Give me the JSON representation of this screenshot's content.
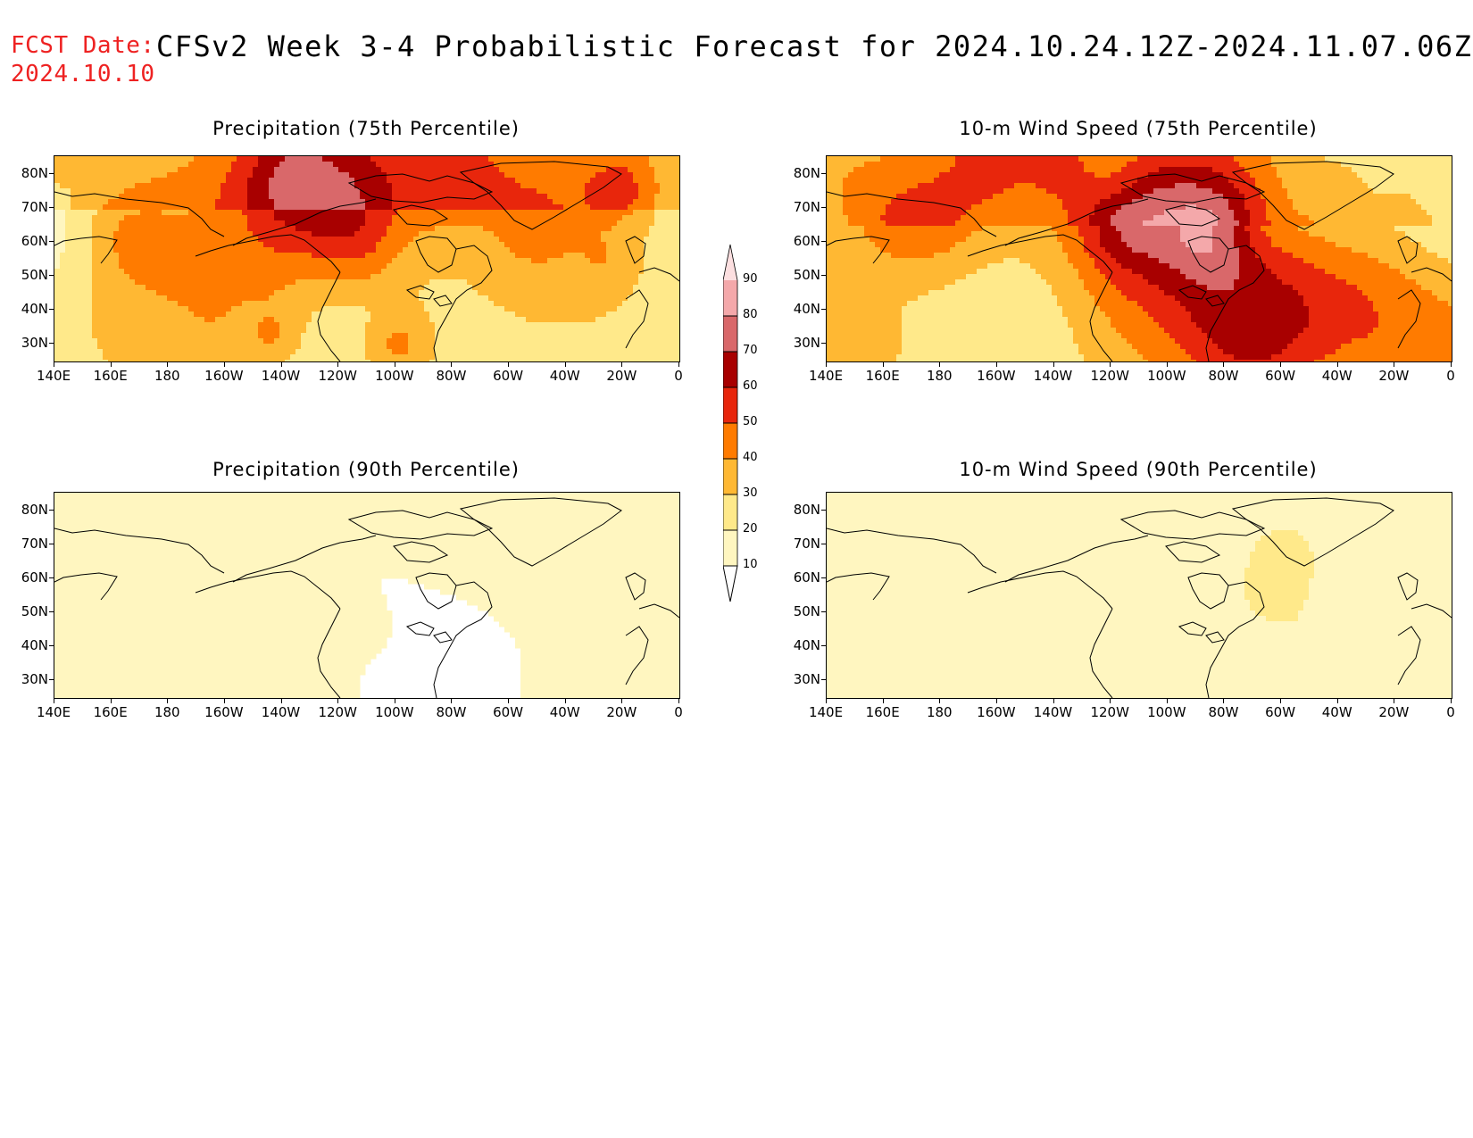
{
  "header": {
    "fcst_label": "FCST Date:",
    "fcst_date": "2024.10.10",
    "title": "CFSv2 Week 3-4 Probabilistic Forecast for 2024.10.24.12Z-2024.11.07.06Z"
  },
  "panels": [
    {
      "title": "Precipitation (75th Percentile)"
    },
    {
      "title": "10-m Wind Speed (75th Percentile)"
    },
    {
      "title": "Precipitation (90th Percentile)"
    },
    {
      "title": "10-m Wind Speed (90th Percentile)"
    }
  ],
  "axes": {
    "lat_labels": [
      "80N",
      "70N",
      "60N",
      "50N",
      "40N",
      "30N"
    ],
    "lon_labels": [
      "140E",
      "160E",
      "180",
      "160W",
      "140W",
      "120W",
      "100W",
      "80W",
      "60W",
      "40W",
      "20W",
      "0"
    ]
  },
  "colorbar": {
    "labels": [
      "10",
      "20",
      "30",
      "40",
      "50",
      "60",
      "70",
      "80",
      "90"
    ],
    "colors": [
      "#fff6c0",
      "#ffe98a",
      "#ffb833",
      "#ff7b00",
      "#e8260c",
      "#a80000",
      "#d9686a",
      "#f4a8aa",
      "#fcdfe0"
    ]
  }
}
